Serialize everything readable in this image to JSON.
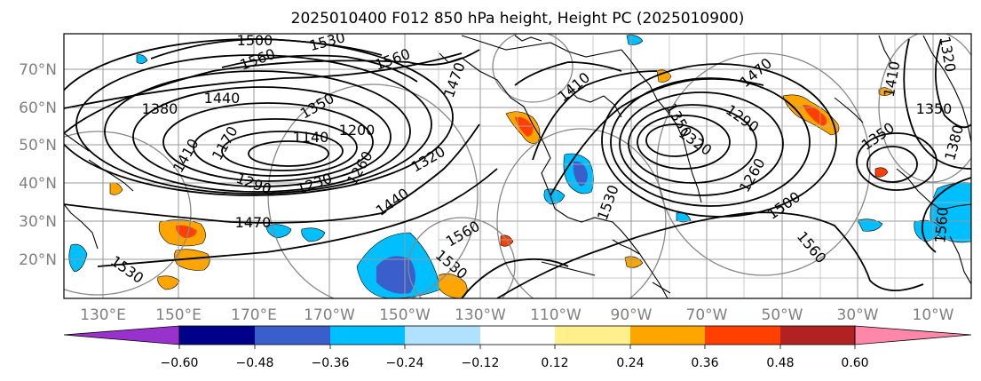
{
  "title": "2025010400 F012 850 hPa height, Height PC (2025010900)",
  "map": {
    "lat_labels": [
      "70°N",
      "60°N",
      "50°N",
      "40°N",
      "30°N",
      "20°N"
    ],
    "lon_labels": [
      "130°E",
      "150°E",
      "170°E",
      "170°W",
      "150°W",
      "130°W",
      "110°W",
      "90°W",
      "70°W",
      "50°W",
      "30°W",
      "10°W"
    ],
    "contour_labels": [
      "1500",
      "1530",
      "1560",
      "1560",
      "1470",
      "1410",
      "1470",
      "1440",
      "1380",
      "1350",
      "1410",
      "1140",
      "1200",
      "1170",
      "1290",
      "1230",
      "1260",
      "1320",
      "1440",
      "1470",
      "1560",
      "1530",
      "1530",
      "1350",
      "1320",
      "1290",
      "1260",
      "1500",
      "1560",
      "1410",
      "1530",
      "1350",
      "1380",
      "1560",
      "1320",
      "1350"
    ]
  },
  "colorbar": {
    "ticks": [
      "−0.60",
      "−0.48",
      "−0.36",
      "−0.24",
      "−0.12",
      "0.12",
      "0.24",
      "0.36",
      "0.48",
      "0.60"
    ],
    "colors": [
      "#9932cc",
      "#00008b",
      "#3a5fcd",
      "#00bfff",
      "#b0e2ff",
      "#ffffff",
      "#fff08c",
      "#ffa500",
      "#ff4000",
      "#b22222",
      "#ff88aa"
    ]
  }
}
